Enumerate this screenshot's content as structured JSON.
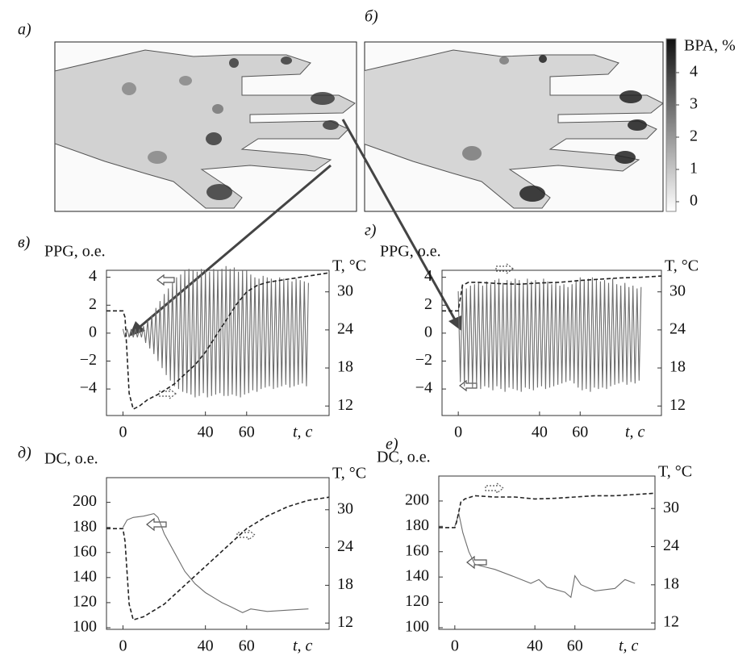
{
  "chart_data": [
    {
      "type": "image",
      "label": "а)"
    },
    {
      "type": "image",
      "label": "б)"
    },
    {
      "type": "colorbar",
      "title": "BPA, %",
      "ylim": [
        -0.3,
        5.05
      ],
      "yticks": [
        0,
        1,
        2,
        3,
        4
      ]
    },
    {
      "type": "line",
      "label": "в)",
      "ylabel": "PPG, о.е.",
      "y2label": "T, °C",
      "xlabel": "t, с",
      "xlim": [
        -8,
        100
      ],
      "xticks": [
        0,
        40,
        60
      ],
      "ylim": [
        -5.9,
        4.5
      ],
      "yticks": [
        4,
        2,
        0,
        {
          "value": -2,
          "label": "−2"
        },
        {
          "value": -4,
          "label": "−4"
        }
      ],
      "y2lim": [
        10.5,
        33.4
      ],
      "y2ticks": [
        30,
        24,
        18,
        12
      ],
      "series": [
        {
          "color": "#6e6e6e",
          "style": "solid",
          "axis": "y",
          "x": [
            0,
            1,
            2,
            3,
            4,
            5,
            6,
            7,
            8,
            9,
            10,
            11,
            12,
            13,
            14,
            15,
            16,
            17,
            18,
            19,
            20,
            21,
            22,
            23,
            24,
            25,
            26,
            27,
            28,
            29,
            30,
            31,
            32,
            33,
            34,
            35,
            36,
            37,
            38,
            39,
            40,
            41,
            42,
            43,
            44,
            45,
            46,
            47,
            48,
            49,
            50,
            51,
            52,
            53,
            54,
            55,
            56,
            57,
            58,
            59,
            60,
            61,
            62,
            63,
            64,
            65,
            66,
            67,
            68,
            69,
            70,
            71,
            72,
            73,
            74,
            75,
            76,
            77,
            78,
            79,
            80,
            81,
            82,
            83,
            84,
            85,
            86,
            87,
            88,
            89,
            90
          ],
          "values": [
            0.3,
            -0.3,
            0.3,
            -0.3,
            0.3,
            -0.3,
            0.3,
            -0.3,
            0.3,
            -0.3,
            0.5,
            -0.7,
            0.9,
            -1.1,
            1.3,
            -1.5,
            1.8,
            -2,
            2.3,
            -2.5,
            2.8,
            -3,
            3.2,
            -3.4,
            3.6,
            -3.8,
            4,
            -4,
            4.2,
            -4.2,
            4.5,
            -4.3,
            4.6,
            -4.4,
            4.5,
            -4.6,
            4.4,
            -4.5,
            4.6,
            -4.3,
            4.5,
            -4.6,
            4.4,
            -4.5,
            4.6,
            -4.4,
            4.5,
            -4.3,
            4.6,
            -4.5,
            4.8,
            -4.5,
            4.6,
            -4.4,
            4.7,
            -4.5,
            4.4,
            -4.6,
            4.5,
            -4.4,
            4.5,
            -4.3,
            4.2,
            -4.1,
            4,
            -4.2,
            3.9,
            -4,
            4.1,
            -3.9,
            4,
            -3.8,
            3.9,
            -4,
            3.8,
            -3.9,
            4,
            -3.8,
            3.9,
            -3.7,
            3.8,
            -3.9,
            3.7,
            -3.8,
            3.9,
            -3.7,
            3.8,
            -3.6,
            3.7,
            -3.8,
            3.6
          ]
        },
        {
          "color": "#222222",
          "style": "dashed",
          "axis": "y2",
          "x": [
            -8,
            0,
            1,
            2,
            3,
            5,
            8,
            12,
            18,
            25,
            30,
            35,
            40,
            45,
            50,
            55,
            60,
            65,
            70,
            80,
            90,
            100
          ],
          "values": [
            27,
            27,
            26,
            20,
            14,
            11.5,
            12,
            13,
            14,
            15.5,
            17,
            18.5,
            20.5,
            23,
            25.5,
            28,
            30,
            31,
            31.5,
            32,
            32.5,
            33
          ]
        }
      ]
    },
    {
      "type": "line",
      "label": "г)",
      "ylabel": "PPG, о.е.",
      "y2label": "T, °C",
      "xlabel": "t, с",
      "xlim": [
        -8,
        100
      ],
      "xticks": [
        0,
        40,
        60
      ],
      "ylim": [
        -5.9,
        4.5
      ],
      "yticks": [
        4,
        2,
        0,
        {
          "value": -2,
          "label": "−2"
        },
        {
          "value": -4,
          "label": "−4"
        }
      ],
      "y2lim": [
        10.5,
        33.4
      ],
      "y2ticks": [
        30,
        24,
        18,
        12
      ],
      "series": [
        {
          "color": "#6e6e6e",
          "style": "solid",
          "axis": "y",
          "x": [
            0,
            1,
            2,
            3,
            4,
            5,
            6,
            7,
            8,
            9,
            10,
            11,
            12,
            13,
            14,
            15,
            16,
            17,
            18,
            19,
            20,
            21,
            22,
            23,
            24,
            25,
            26,
            27,
            28,
            29,
            30,
            31,
            32,
            33,
            34,
            35,
            36,
            37,
            38,
            39,
            40,
            41,
            42,
            43,
            44,
            45,
            46,
            47,
            48,
            49,
            50,
            51,
            52,
            53,
            54,
            55,
            56,
            57,
            58,
            59,
            60,
            61,
            62,
            63,
            64,
            65,
            66,
            67,
            68,
            69,
            70,
            71,
            72,
            73,
            74,
            75,
            76,
            77,
            78,
            79,
            80,
            81,
            82,
            83,
            84,
            85,
            86,
            87,
            88,
            89,
            90
          ],
          "values": [
            3,
            -3.5,
            3.5,
            -3.8,
            3.2,
            -3.6,
            3.4,
            -3.9,
            3.5,
            -3.7,
            3.6,
            -4,
            3.4,
            -3.8,
            3.7,
            -3.9,
            3.5,
            -4.1,
            3.8,
            -3.8,
            3.9,
            -4,
            3.6,
            -4.2,
            3.8,
            -3.9,
            3.7,
            -4,
            3.9,
            -4.1,
            3.8,
            -4.2,
            3.6,
            -3.9,
            3.9,
            -4,
            3.7,
            -4.1,
            3.8,
            -3.9,
            3.6,
            -3.8,
            3.9,
            -4,
            3.7,
            -3.9,
            3.5,
            -3.8,
            3.6,
            -3.7,
            3.4,
            -3.6,
            3.5,
            -3.5,
            3.3,
            -3.4,
            3.5,
            -3.6,
            3.8,
            -3.9,
            4,
            -4.1,
            3.8,
            -4,
            3.9,
            -4.2,
            4,
            -3.9,
            3.8,
            -4,
            3.7,
            -3.9,
            3.8,
            -4,
            3.6,
            -3.8,
            3.9,
            -3.7,
            3.5,
            -3.6,
            3.4,
            -3.5,
            3.6,
            -3.7,
            3.3,
            -3.5,
            3.4,
            -3.6,
            3.2,
            -3.4,
            3.3
          ]
        },
        {
          "color": "#222222",
          "style": "dashed",
          "axis": "y2",
          "x": [
            -8,
            0,
            1,
            2,
            5,
            10,
            20,
            30,
            40,
            50,
            60,
            70,
            80,
            90,
            100
          ],
          "values": [
            27,
            27,
            29,
            31,
            31.5,
            31.5,
            31.3,
            31.2,
            31.4,
            31.5,
            31.8,
            32,
            32.2,
            32.3,
            32.5
          ]
        }
      ]
    },
    {
      "type": "line",
      "label": "д)",
      "ylabel": "DC, о.е.",
      "y2label": "T, °C",
      "xlabel": "t, с",
      "xlim": [
        -8,
        100
      ],
      "xticks": [
        0,
        40,
        60
      ],
      "ylim": [
        98.7,
        219.7
      ],
      "yticks": [
        200,
        180,
        160,
        140,
        120,
        100
      ],
      "y2lim": [
        11,
        35.1
      ],
      "y2ticks": [
        30,
        24,
        18,
        12
      ],
      "series": [
        {
          "color": "#6e6e6e",
          "style": "solid",
          "axis": "y",
          "x": [
            0,
            2,
            5,
            10,
            15,
            17,
            20,
            25,
            30,
            35,
            40,
            45,
            48,
            52,
            58,
            62,
            70,
            80,
            90
          ],
          "values": [
            180,
            186,
            188,
            189,
            191,
            188,
            175,
            160,
            145,
            135,
            128,
            123,
            120,
            117,
            112,
            115,
            113,
            114,
            115
          ]
        },
        {
          "color": "#222222",
          "style": "dashed",
          "axis": "y2",
          "x": [
            -8,
            0,
            1,
            3,
            5,
            10,
            20,
            30,
            40,
            50,
            60,
            70,
            80,
            90,
            100
          ],
          "values": [
            27,
            27,
            25,
            15,
            12.5,
            13,
            15,
            18,
            21,
            24,
            27,
            29,
            30.5,
            31.5,
            32
          ]
        }
      ]
    },
    {
      "type": "line",
      "label": "е)",
      "ylabel": "DC, о.е.",
      "y2label": "T, °C",
      "xlabel": "t, с",
      "xlim": [
        -8,
        100
      ],
      "xticks": [
        0,
        40,
        60
      ],
      "ylim": [
        98.7,
        219.7
      ],
      "yticks": [
        200,
        180,
        160,
        140,
        120,
        100
      ],
      "y2lim": [
        11,
        35.1
      ],
      "y2ticks": [
        30,
        24,
        18,
        12
      ],
      "series": [
        {
          "color": "#6e6e6e",
          "style": "solid",
          "axis": "y",
          "x": [
            0,
            2,
            4,
            7,
            10,
            15,
            20,
            30,
            38,
            42,
            46,
            55,
            58,
            60,
            63,
            70,
            80,
            85,
            90
          ],
          "values": [
            180,
            190,
            175,
            160,
            150,
            148,
            146,
            140,
            135,
            138,
            132,
            128,
            124,
            141,
            134,
            129,
            131,
            138,
            135
          ]
        },
        {
          "color": "#222222",
          "style": "dashed",
          "axis": "y2",
          "x": [
            -8,
            0,
            1,
            3,
            5,
            10,
            20,
            30,
            40,
            50,
            60,
            70,
            80,
            90,
            100
          ],
          "values": [
            27,
            27,
            28,
            31,
            31.5,
            32,
            31.8,
            31.8,
            31.5,
            31.6,
            31.8,
            32,
            32,
            32.2,
            32.4
          ]
        }
      ]
    }
  ]
}
